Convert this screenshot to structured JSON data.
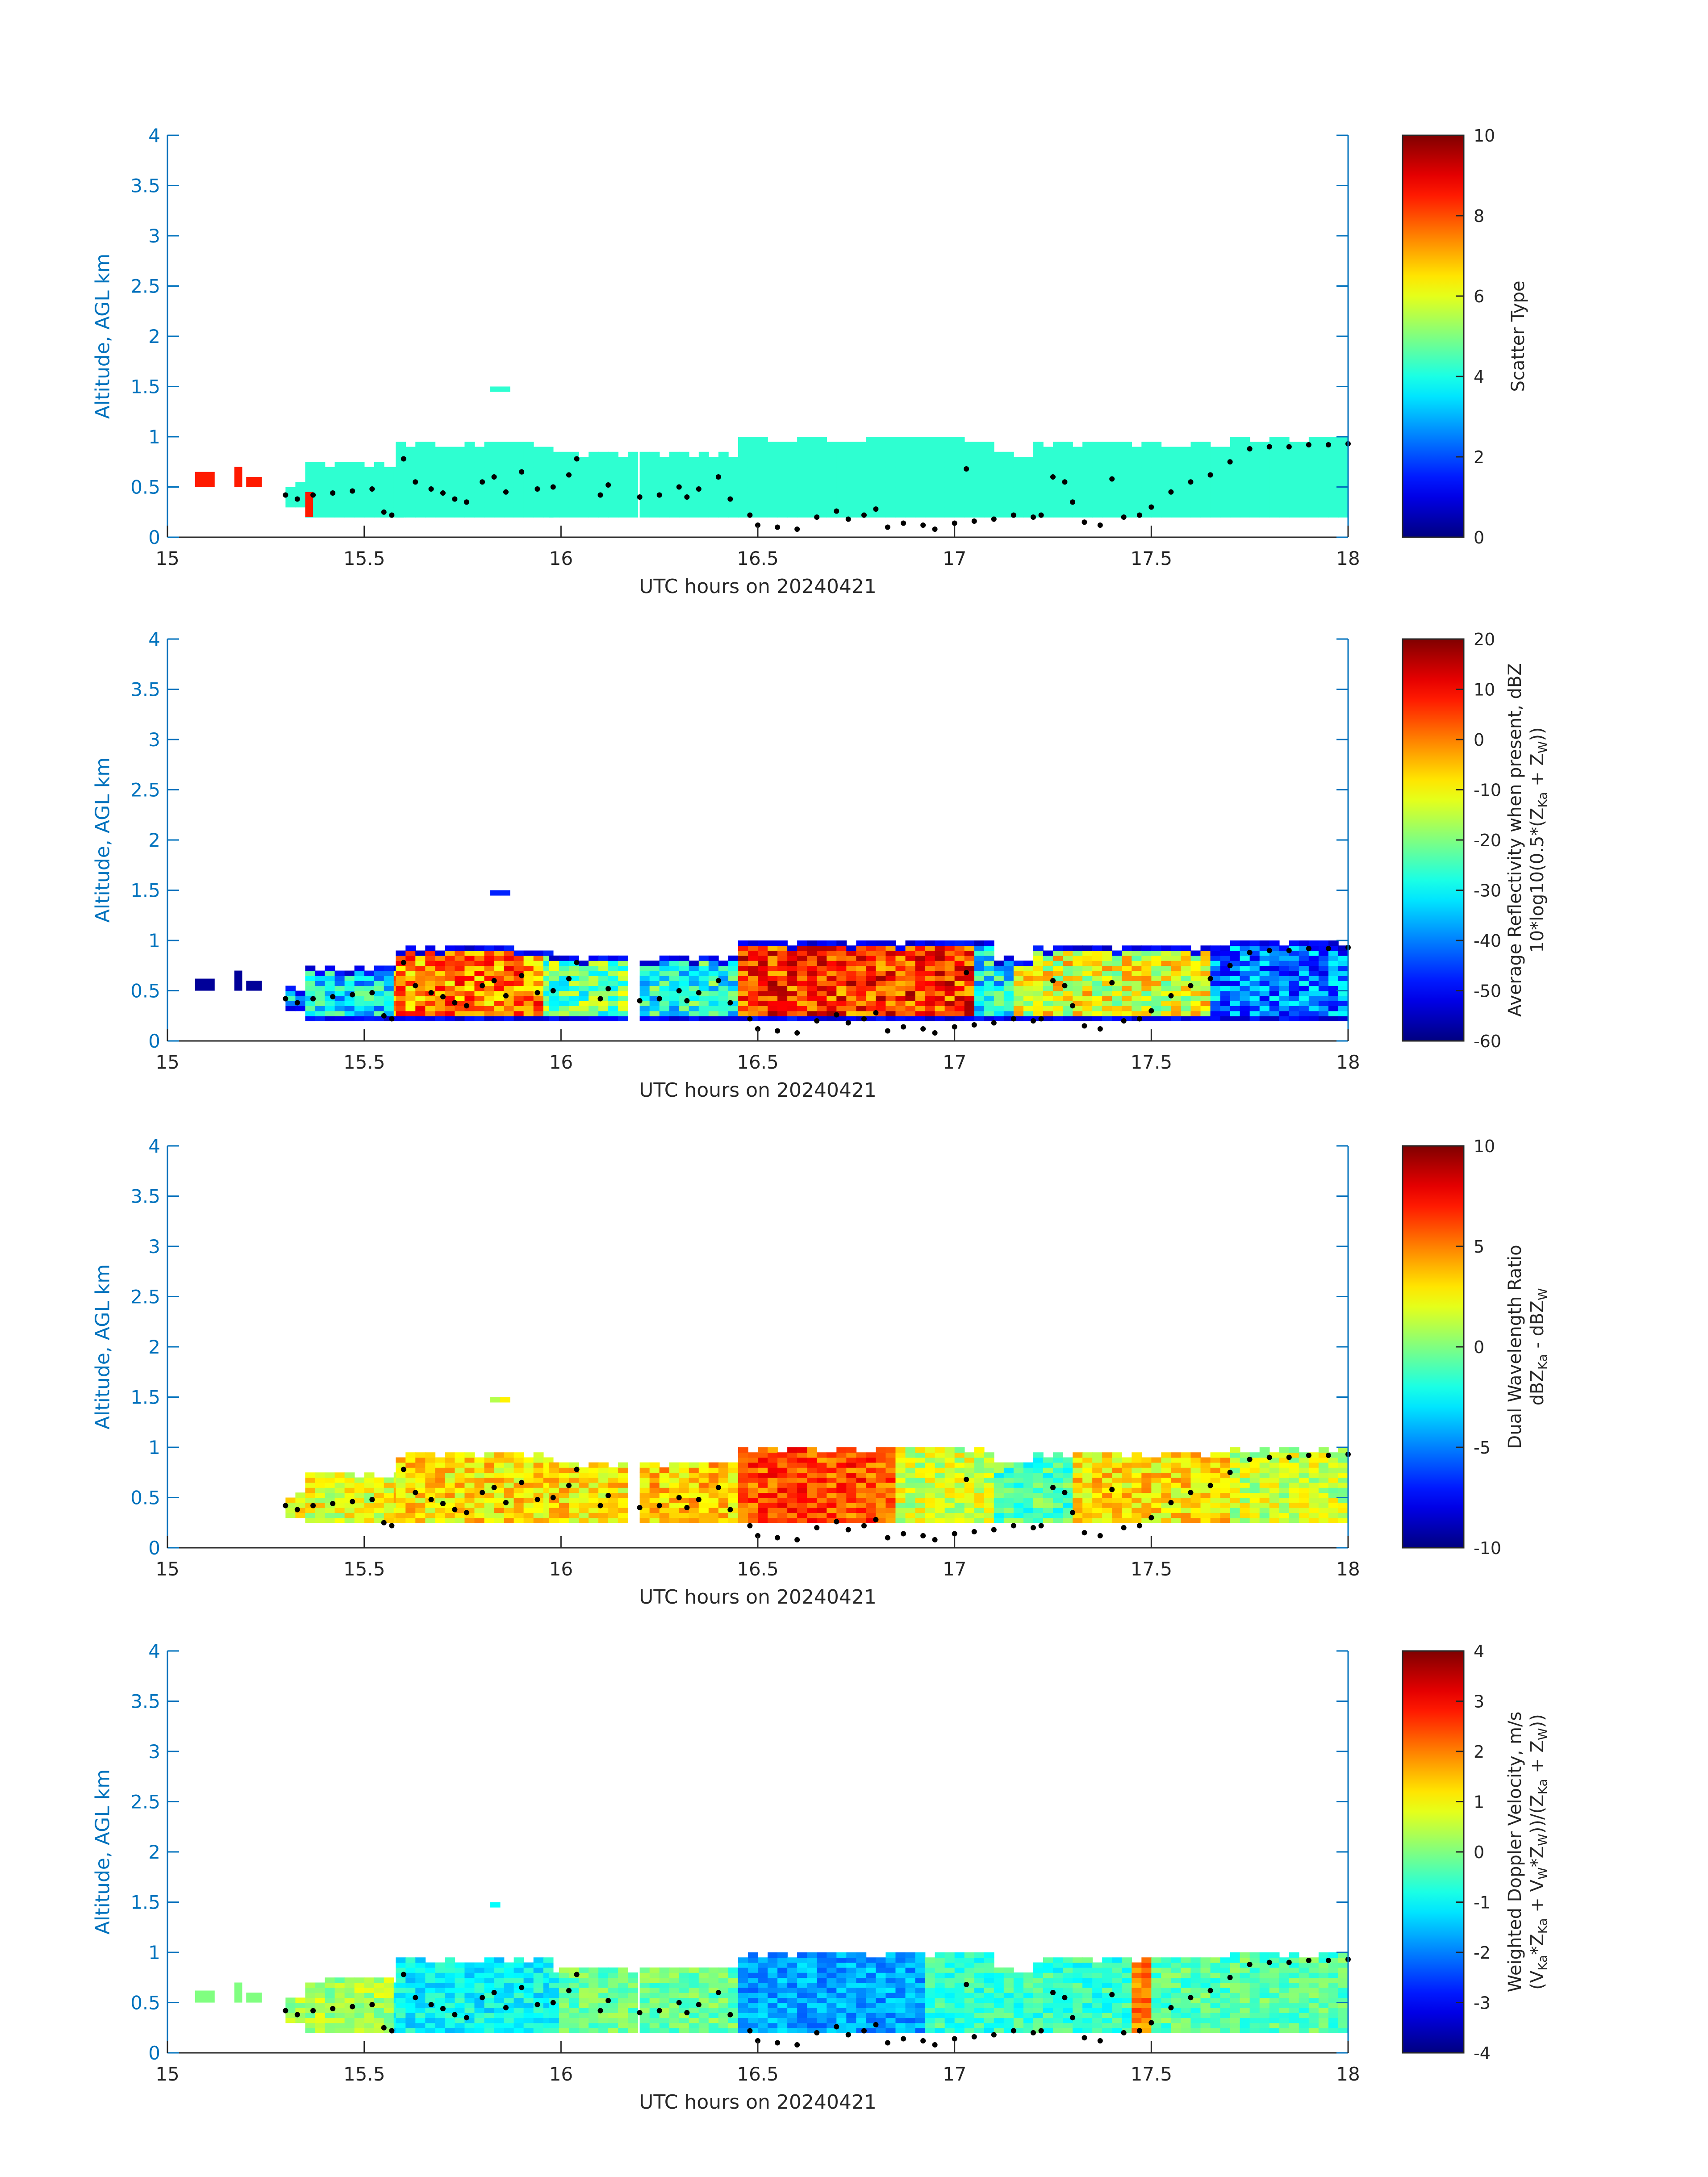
{
  "colors": {
    "axis": "#0072BD",
    "text": "#262626",
    "dots": "#000000"
  },
  "chart_data": {
    "type": "heatmap",
    "colormap": "jet",
    "x": {
      "label": "UTC hours on 20240421",
      "lim": [
        15,
        18
      ],
      "ticks": [
        "15",
        "15.5",
        "16",
        "16.5",
        "17",
        "17.5",
        "18"
      ]
    },
    "y": {
      "label": "Altitude, AGL km",
      "lim": [
        0,
        4
      ],
      "ticks": [
        "0",
        "0.5",
        "1",
        "1.5",
        "2",
        "2.5",
        "3",
        "3.5",
        "4"
      ]
    },
    "cloud_extent": [
      [
        15.3,
        15.35,
        0.3,
        0.55
      ],
      [
        15.35,
        15.58,
        0.2,
        0.75
      ],
      [
        15.58,
        15.97,
        0.2,
        0.95
      ],
      [
        15.97,
        16.18,
        0.2,
        0.85
      ],
      [
        16.2,
        16.45,
        0.2,
        0.85
      ],
      [
        16.45,
        17.1,
        0.2,
        1.0
      ],
      [
        17.1,
        17.2,
        0.2,
        0.85
      ],
      [
        17.2,
        17.7,
        0.2,
        0.95
      ],
      [
        17.7,
        18.0,
        0.2,
        1.0
      ],
      [
        15.82,
        15.85,
        1.45,
        1.5
      ]
    ],
    "dots": [
      [
        15.3,
        0.42
      ],
      [
        15.33,
        0.38
      ],
      [
        15.37,
        0.42
      ],
      [
        15.42,
        0.44
      ],
      [
        15.47,
        0.46
      ],
      [
        15.52,
        0.48
      ],
      [
        15.55,
        0.25
      ],
      [
        15.57,
        0.22
      ],
      [
        15.6,
        0.78
      ],
      [
        15.63,
        0.55
      ],
      [
        15.67,
        0.48
      ],
      [
        15.7,
        0.44
      ],
      [
        15.73,
        0.38
      ],
      [
        15.76,
        0.35
      ],
      [
        15.8,
        0.55
      ],
      [
        15.83,
        0.6
      ],
      [
        15.86,
        0.45
      ],
      [
        15.9,
        0.65
      ],
      [
        15.94,
        0.48
      ],
      [
        15.98,
        0.5
      ],
      [
        16.02,
        0.62
      ],
      [
        16.04,
        0.78
      ],
      [
        16.1,
        0.42
      ],
      [
        16.12,
        0.52
      ],
      [
        16.2,
        0.4
      ],
      [
        16.25,
        0.42
      ],
      [
        16.3,
        0.5
      ],
      [
        16.32,
        0.4
      ],
      [
        16.35,
        0.48
      ],
      [
        16.4,
        0.6
      ],
      [
        16.43,
        0.38
      ],
      [
        16.48,
        0.22
      ],
      [
        16.5,
        0.12
      ],
      [
        16.55,
        0.1
      ],
      [
        16.6,
        0.08
      ],
      [
        16.65,
        0.2
      ],
      [
        16.7,
        0.26
      ],
      [
        16.73,
        0.18
      ],
      [
        16.77,
        0.22
      ],
      [
        16.8,
        0.28
      ],
      [
        16.83,
        0.1
      ],
      [
        16.87,
        0.14
      ],
      [
        16.92,
        0.12
      ],
      [
        16.95,
        0.08
      ],
      [
        17.0,
        0.14
      ],
      [
        17.03,
        0.68
      ],
      [
        17.05,
        0.16
      ],
      [
        17.1,
        0.18
      ],
      [
        17.15,
        0.22
      ],
      [
        17.2,
        0.2
      ],
      [
        17.22,
        0.22
      ],
      [
        17.25,
        0.6
      ],
      [
        17.28,
        0.55
      ],
      [
        17.3,
        0.35
      ],
      [
        17.33,
        0.15
      ],
      [
        17.37,
        0.12
      ],
      [
        17.4,
        0.58
      ],
      [
        17.43,
        0.2
      ],
      [
        17.47,
        0.22
      ],
      [
        17.5,
        0.3
      ],
      [
        17.55,
        0.45
      ],
      [
        17.6,
        0.55
      ],
      [
        17.65,
        0.62
      ],
      [
        17.7,
        0.75
      ],
      [
        17.75,
        0.88
      ],
      [
        17.8,
        0.9
      ],
      [
        17.85,
        0.9
      ],
      [
        17.9,
        0.92
      ],
      [
        17.95,
        0.92
      ],
      [
        18.0,
        0.93
      ]
    ],
    "panels": [
      {
        "clim": [
          0,
          10
        ],
        "cticks": [
          "0",
          "2",
          "4",
          "6",
          "8",
          "10"
        ],
        "clabel": [
          [
            {
              "t": "Scatter Type"
            }
          ]
        ],
        "extra": [
          [
            15.07,
            15.12,
            0.5,
            0.65,
            8.5
          ],
          [
            15.17,
            15.19,
            0.5,
            0.7,
            8.5
          ],
          [
            15.2,
            15.24,
            0.5,
            0.6,
            8.5
          ],
          [
            15.35,
            15.37,
            0.2,
            0.45,
            8.5
          ]
        ],
        "value_segments": [
          [
            15,
            18,
            4.2
          ]
        ],
        "noise": 0
      },
      {
        "clim": [
          -60,
          20
        ],
        "cticks": [
          "-60",
          "-50",
          "-40",
          "-30",
          "-20",
          "-10",
          "0",
          "10",
          "20"
        ],
        "clabel": [
          [
            {
              "t": "Average Reflectivity when present, dBZ"
            }
          ],
          [
            {
              "t": "10*log10(0.5*(Z"
            },
            {
              "s": "Ka"
            },
            {
              "t": " + Z"
            },
            {
              "s": "W"
            },
            {
              "t": "))"
            }
          ]
        ],
        "extra": [
          [
            15.07,
            15.12,
            0.5,
            0.62,
            -58
          ],
          [
            15.17,
            15.19,
            0.5,
            0.7,
            -58
          ],
          [
            15.2,
            15.24,
            0.5,
            0.6,
            -58
          ]
        ],
        "value_segments": [
          [
            15.3,
            15.58,
            -32
          ],
          [
            15.58,
            15.95,
            0
          ],
          [
            15.95,
            16.18,
            -22
          ],
          [
            16.2,
            16.45,
            -28
          ],
          [
            16.45,
            17.05,
            6
          ],
          [
            17.05,
            17.15,
            -30
          ],
          [
            17.15,
            17.65,
            -12
          ],
          [
            17.65,
            18,
            -40
          ]
        ],
        "noise": 12,
        "edge": -55
      },
      {
        "clim": [
          -10,
          10
        ],
        "cticks": [
          "-10",
          "-5",
          "0",
          "5",
          "10"
        ],
        "clabel": [
          [
            {
              "t": "Dual Wavelength Ratio"
            }
          ],
          [
            {
              "t": "dBZ"
            },
            {
              "s": "Ka"
            },
            {
              "t": " - dBZ"
            },
            {
              "s": "W"
            }
          ]
        ],
        "extra": [],
        "value_segments": [
          [
            15.3,
            15.58,
            2
          ],
          [
            15.58,
            16.18,
            3
          ],
          [
            16.2,
            16.45,
            3.5
          ],
          [
            16.45,
            16.85,
            6
          ],
          [
            16.85,
            17.1,
            1.5
          ],
          [
            17.1,
            17.3,
            -1
          ],
          [
            17.3,
            17.7,
            3
          ],
          [
            17.7,
            18,
            1.5
          ]
        ],
        "noise": 2,
        "bottom": 0.25
      },
      {
        "clim": [
          -4,
          4
        ],
        "cticks": [
          "-4",
          "-3",
          "-2",
          "-1",
          "0",
          "1",
          "2",
          "3",
          "4"
        ],
        "clabel": [
          [
            {
              "t": "Weighted Doppler Velocity, m/s"
            }
          ],
          [
            {
              "t": "(V"
            },
            {
              "s": "Ka"
            },
            {
              "t": "*Z"
            },
            {
              "s": "Ka"
            },
            {
              "t": " + V"
            },
            {
              "s": "W"
            },
            {
              "t": "*Z"
            },
            {
              "s": "W"
            },
            {
              "t": "))/(Z"
            },
            {
              "s": "Ka"
            },
            {
              "t": " + Z"
            },
            {
              "s": "W"
            },
            {
              "t": "))"
            }
          ]
        ],
        "extra": [
          [
            15.07,
            15.12,
            0.5,
            0.62,
            0
          ],
          [
            15.17,
            15.19,
            0.5,
            0.7,
            0
          ],
          [
            15.2,
            15.24,
            0.5,
            0.6,
            0
          ]
        ],
        "value_segments": [
          [
            15.3,
            15.58,
            0.3
          ],
          [
            15.58,
            16.0,
            -1
          ],
          [
            16.0,
            16.45,
            -0.2
          ],
          [
            16.45,
            16.92,
            -1.7
          ],
          [
            16.92,
            17.45,
            -0.6
          ],
          [
            17.45,
            17.5,
            2
          ],
          [
            17.5,
            18,
            -0.3
          ]
        ],
        "noise": 0.6
      }
    ]
  }
}
